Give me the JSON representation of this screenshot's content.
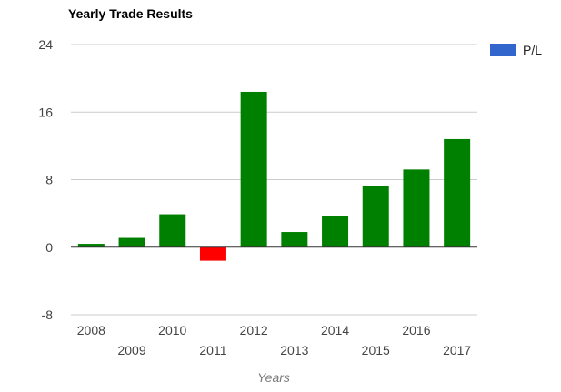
{
  "chart_data": {
    "type": "bar",
    "title": "Yearly Trade Results",
    "xlabel": "Years",
    "ylabel": "",
    "categories": [
      "2008",
      "2009",
      "2010",
      "2011",
      "2012",
      "2013",
      "2014",
      "2015",
      "2016",
      "2017"
    ],
    "series": [
      {
        "name": "P/L",
        "values": [
          0.4,
          1.1,
          3.9,
          -1.6,
          18.4,
          1.8,
          3.7,
          7.2,
          9.2,
          12.8
        ]
      }
    ],
    "ylim": [
      -8,
      24
    ],
    "yticks": [
      "24",
      "16",
      "8",
      "0",
      "-8"
    ],
    "grid": true,
    "legend": "top-right",
    "legend_color": "#3366cc",
    "positive_color": "#008000",
    "negative_color": "#ff0000"
  }
}
